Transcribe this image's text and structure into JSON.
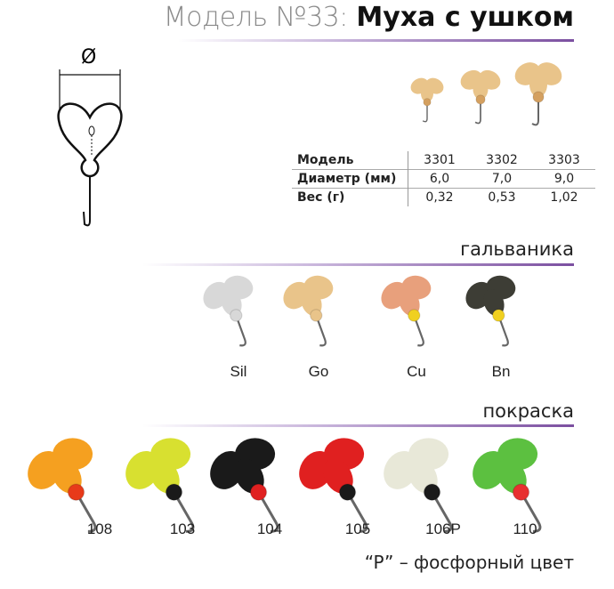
{
  "title": {
    "prefix": "Модель №33:",
    "name": "Муха с ушком"
  },
  "diagram": {
    "diameter_symbol": "Ø"
  },
  "specs": {
    "rows": [
      {
        "label": "Модель",
        "values": [
          "3301",
          "3302",
          "3303"
        ]
      },
      {
        "label": "Диаметр (мм)",
        "values": [
          "6,0",
          "7,0",
          "9,0"
        ]
      },
      {
        "label": "Вес (г)",
        "values": [
          "0,32",
          "0,53",
          "1,02"
        ]
      }
    ]
  },
  "galvanic": {
    "heading": "гальваника",
    "items": [
      {
        "code": "Sil",
        "color": "#d8d8d8"
      },
      {
        "code": "Go",
        "color": "#e9c48a"
      },
      {
        "code": "Cu",
        "color": "#e8a07c"
      },
      {
        "code": "Bn",
        "color": "#3d3d35"
      }
    ]
  },
  "paint": {
    "heading": "покраска",
    "items": [
      {
        "code": "108",
        "color": "#f5a020",
        "accent": "#e83a1a"
      },
      {
        "code": "103",
        "color": "#d8e030",
        "accent": "#1a1a1a"
      },
      {
        "code": "104",
        "color": "#1a1a1a",
        "accent": "#e02020"
      },
      {
        "code": "105",
        "color": "#e02020",
        "accent": "#1a1a1a"
      },
      {
        "code": "106P",
        "color": "#e8e8d8",
        "accent": "#1a1a1a"
      },
      {
        "code": "110",
        "color": "#5cc040",
        "accent": "#e83030"
      }
    ]
  },
  "footnote": "“P” – фосфорный цвет",
  "colors": {
    "accent": "#7b4fa0"
  }
}
